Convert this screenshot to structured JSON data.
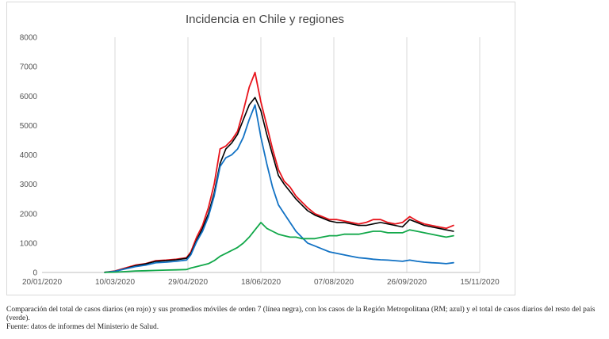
{
  "chart_data": {
    "type": "line",
    "title": "Incidencia en Chile y regiones",
    "xlabel": "",
    "ylabel": "",
    "ylim": [
      0,
      8000
    ],
    "y_ticks": [
      "0",
      "1000",
      "2000",
      "3000",
      "4000",
      "5000",
      "6000",
      "7000",
      "8000"
    ],
    "x_range": [
      "2020-01-20",
      "2020-11-15"
    ],
    "x_ticks": [
      "20/01/2020",
      "10/03/2020",
      "29/04/2020",
      "18/06/2020",
      "07/08/2020",
      "26/09/2020",
      "15/11/2020"
    ],
    "grid": "vertical",
    "legend": "none",
    "series": [
      {
        "color": "#e8141c",
        "x": [
          "2020-03-03",
          "2020-03-10",
          "2020-03-17",
          "2020-03-24",
          "2020-03-31",
          "2020-04-07",
          "2020-04-14",
          "2020-04-21",
          "2020-04-28",
          "2020-05-01",
          "2020-05-05",
          "2020-05-09",
          "2020-05-13",
          "2020-05-17",
          "2020-05-21",
          "2020-05-25",
          "2020-05-29",
          "2020-06-02",
          "2020-06-06",
          "2020-06-10",
          "2020-06-14",
          "2020-06-18",
          "2020-06-22",
          "2020-06-26",
          "2020-06-30",
          "2020-07-04",
          "2020-07-08",
          "2020-07-12",
          "2020-07-16",
          "2020-07-20",
          "2020-07-25",
          "2020-07-30",
          "2020-08-04",
          "2020-08-09",
          "2020-08-14",
          "2020-08-19",
          "2020-08-24",
          "2020-08-29",
          "2020-09-03",
          "2020-09-08",
          "2020-09-13",
          "2020-09-18",
          "2020-09-23",
          "2020-09-28",
          "2020-10-03",
          "2020-10-08",
          "2020-10-13",
          "2020-10-18",
          "2020-10-23",
          "2020-10-28"
        ],
        "values": [
          5,
          50,
          150,
          250,
          300,
          400,
          420,
          450,
          500,
          700,
          1200,
          1600,
          2200,
          3000,
          4200,
          4300,
          4500,
          4800,
          5500,
          6300,
          6800,
          5800,
          5000,
          4200,
          3500,
          3100,
          2900,
          2600,
          2400,
          2200,
          2000,
          1900,
          1800,
          1800,
          1750,
          1700,
          1650,
          1700,
          1800,
          1800,
          1700,
          1650,
          1700,
          1900,
          1750,
          1650,
          1600,
          1550,
          1500,
          1600
        ]
      },
      {
        "color": "#000000",
        "x": [
          "2020-03-03",
          "2020-03-10",
          "2020-03-17",
          "2020-03-24",
          "2020-03-31",
          "2020-04-07",
          "2020-04-14",
          "2020-04-21",
          "2020-04-28",
          "2020-05-01",
          "2020-05-05",
          "2020-05-09",
          "2020-05-13",
          "2020-05-17",
          "2020-05-21",
          "2020-05-25",
          "2020-05-29",
          "2020-06-02",
          "2020-06-06",
          "2020-06-10",
          "2020-06-14",
          "2020-06-18",
          "2020-06-22",
          "2020-06-26",
          "2020-06-30",
          "2020-07-04",
          "2020-07-08",
          "2020-07-12",
          "2020-07-16",
          "2020-07-20",
          "2020-07-25",
          "2020-07-30",
          "2020-08-04",
          "2020-08-09",
          "2020-08-14",
          "2020-08-19",
          "2020-08-24",
          "2020-08-29",
          "2020-09-03",
          "2020-09-08",
          "2020-09-13",
          "2020-09-18",
          "2020-09-23",
          "2020-09-28",
          "2020-10-03",
          "2020-10-08",
          "2020-10-13",
          "2020-10-18",
          "2020-10-23",
          "2020-10-28"
        ],
        "values": [
          5,
          40,
          130,
          230,
          290,
          380,
          400,
          430,
          480,
          650,
          1100,
          1500,
          2000,
          2700,
          3700,
          4200,
          4400,
          4700,
          5200,
          5700,
          5950,
          5500,
          4700,
          4000,
          3300,
          3000,
          2750,
          2500,
          2300,
          2100,
          1950,
          1850,
          1750,
          1700,
          1700,
          1650,
          1600,
          1600,
          1650,
          1700,
          1650,
          1600,
          1550,
          1800,
          1700,
          1600,
          1550,
          1500,
          1450,
          1400
        ]
      },
      {
        "color": "#1272c4",
        "x": [
          "2020-03-03",
          "2020-03-10",
          "2020-03-17",
          "2020-03-24",
          "2020-03-31",
          "2020-04-07",
          "2020-04-14",
          "2020-04-21",
          "2020-04-28",
          "2020-05-01",
          "2020-05-05",
          "2020-05-09",
          "2020-05-13",
          "2020-05-17",
          "2020-05-21",
          "2020-05-25",
          "2020-05-29",
          "2020-06-02",
          "2020-06-06",
          "2020-06-10",
          "2020-06-14",
          "2020-06-18",
          "2020-06-22",
          "2020-06-26",
          "2020-06-30",
          "2020-07-04",
          "2020-07-08",
          "2020-07-12",
          "2020-07-16",
          "2020-07-20",
          "2020-07-25",
          "2020-07-30",
          "2020-08-04",
          "2020-08-09",
          "2020-08-14",
          "2020-08-19",
          "2020-08-24",
          "2020-08-29",
          "2020-09-03",
          "2020-09-08",
          "2020-09-13",
          "2020-09-18",
          "2020-09-23",
          "2020-09-28",
          "2020-10-03",
          "2020-10-08",
          "2020-10-13",
          "2020-10-18",
          "2020-10-23",
          "2020-10-28"
        ],
        "values": [
          3,
          40,
          120,
          200,
          250,
          330,
          350,
          380,
          420,
          600,
          1050,
          1400,
          1900,
          2600,
          3600,
          3900,
          4000,
          4200,
          4600,
          5200,
          5700,
          4600,
          3700,
          2900,
          2300,
          2000,
          1700,
          1400,
          1200,
          1000,
          900,
          800,
          700,
          650,
          600,
          550,
          500,
          480,
          450,
          430,
          420,
          400,
          380,
          420,
          380,
          350,
          330,
          320,
          300,
          330
        ]
      },
      {
        "color": "#12a84a",
        "x": [
          "2020-03-03",
          "2020-03-10",
          "2020-03-17",
          "2020-03-24",
          "2020-03-31",
          "2020-04-07",
          "2020-04-14",
          "2020-04-21",
          "2020-04-28",
          "2020-05-01",
          "2020-05-05",
          "2020-05-09",
          "2020-05-13",
          "2020-05-17",
          "2020-05-21",
          "2020-05-25",
          "2020-05-29",
          "2020-06-02",
          "2020-06-06",
          "2020-06-10",
          "2020-06-14",
          "2020-06-18",
          "2020-06-22",
          "2020-06-26",
          "2020-06-30",
          "2020-07-04",
          "2020-07-08",
          "2020-07-12",
          "2020-07-16",
          "2020-07-20",
          "2020-07-25",
          "2020-07-30",
          "2020-08-04",
          "2020-08-09",
          "2020-08-14",
          "2020-08-19",
          "2020-08-24",
          "2020-08-29",
          "2020-09-03",
          "2020-09-08",
          "2020-09-13",
          "2020-09-18",
          "2020-09-23",
          "2020-09-28",
          "2020-10-03",
          "2020-10-08",
          "2020-10-13",
          "2020-10-18",
          "2020-10-23",
          "2020-10-28"
        ],
        "values": [
          2,
          10,
          30,
          50,
          60,
          70,
          80,
          90,
          100,
          150,
          200,
          250,
          300,
          400,
          550,
          650,
          750,
          850,
          1000,
          1200,
          1450,
          1700,
          1500,
          1400,
          1300,
          1250,
          1200,
          1200,
          1150,
          1150,
          1150,
          1200,
          1250,
          1250,
          1300,
          1300,
          1300,
          1350,
          1400,
          1400,
          1350,
          1350,
          1350,
          1450,
          1400,
          1350,
          1300,
          1250,
          1200,
          1250
        ]
      }
    ]
  },
  "caption": {
    "line1": "Comparación del total de casos diarios (en rojo) y sus promedios móviles de orden 7 (línea negra), con los casos de la Región Metropolitana (RM; azul) y el total de casos diarios del resto del país (verde).",
    "line2": "Fuente: datos de informes del Ministerio de Salud."
  }
}
